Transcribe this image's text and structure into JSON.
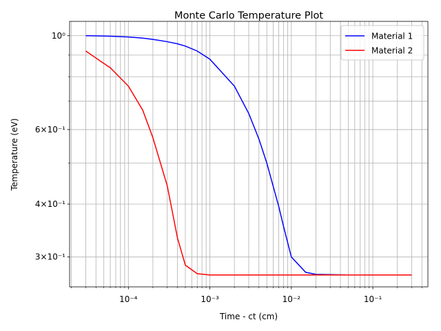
{
  "chart_data": {
    "type": "line",
    "title": "Monte Carlo Temperature Plot",
    "xlabel": "Time - ct (cm)",
    "ylabel": "Temperature (eV)",
    "xscale": "log",
    "yscale": "log",
    "grid": true,
    "legend": "upper right",
    "x": [
      3e-05,
      5e-05,
      6e-05,
      0.0001,
      0.00015,
      0.0002,
      0.0003,
      0.0004,
      0.0005,
      0.0007,
      0.001,
      0.002,
      0.003,
      0.004,
      0.005,
      0.006,
      0.007,
      0.008,
      0.01,
      0.015,
      0.02,
      0.05,
      0.1,
      0.3
    ],
    "series": [
      {
        "name": "Material 1",
        "color": "#0000ff",
        "values": [
          1.0,
          0.998,
          0.997,
          0.993,
          0.987,
          0.98,
          0.968,
          0.957,
          0.945,
          0.92,
          0.88,
          0.76,
          0.655,
          0.57,
          0.5,
          0.44,
          0.395,
          0.355,
          0.3,
          0.276,
          0.273,
          0.272,
          0.272,
          0.272
        ]
      },
      {
        "name": "Material 2",
        "color": "#ff0000",
        "values": [
          0.92,
          0.86,
          0.84,
          0.76,
          0.667,
          0.574,
          0.442,
          0.333,
          0.287,
          0.274,
          0.272,
          0.272,
          0.272,
          0.272,
          0.272,
          0.272,
          0.272,
          0.272,
          0.272,
          0.272,
          0.272,
          0.272,
          0.272,
          0.272
        ]
      }
    ],
    "xlim": [
      1.9e-05,
      0.474
    ],
    "ylim": [
      0.255,
      1.081
    ],
    "xticks": [
      {
        "value": 0.0001,
        "label": "10⁻⁴"
      },
      {
        "value": 0.001,
        "label": "10⁻³"
      },
      {
        "value": 0.01,
        "label": "10⁻²"
      },
      {
        "value": 0.1,
        "label": "10⁻¹"
      }
    ],
    "xminor": [
      2e-05,
      3e-05,
      4e-05,
      5e-05,
      6e-05,
      7e-05,
      8e-05,
      9e-05,
      0.0002,
      0.0003,
      0.0004,
      0.0005,
      0.0006,
      0.0007,
      0.0008,
      0.0009,
      0.002,
      0.003,
      0.004,
      0.005,
      0.006,
      0.007,
      0.008,
      0.009,
      0.02,
      0.03,
      0.04,
      0.05,
      0.06,
      0.07,
      0.08,
      0.09,
      0.2,
      0.3,
      0.4
    ],
    "yticks": [
      {
        "value": 1,
        "label": "10⁰"
      },
      {
        "value": 0.6,
        "label": "6×10⁻¹"
      },
      {
        "value": 0.4,
        "label": "4×10⁻¹"
      },
      {
        "value": 0.3,
        "label": "3×10⁻¹"
      }
    ],
    "yminor": [
      0.9,
      0.8,
      0.7,
      0.5
    ]
  }
}
